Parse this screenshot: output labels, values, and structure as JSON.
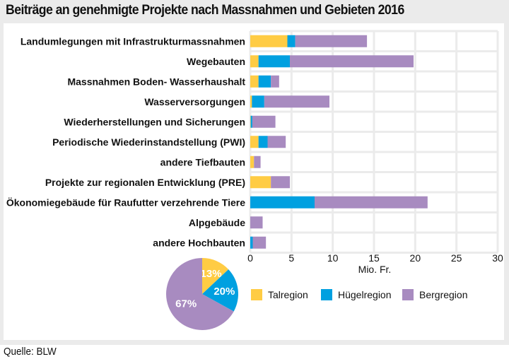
{
  "title": "Beiträge an genehmigte Projekte nach Massnahmen und Gebieten 2016",
  "source": "Quelle: BLW",
  "colors": {
    "Talregion": "#ffcc44",
    "Hügelregion": "#00a0e0",
    "Bergregion": "#a88bc0",
    "grid": "#ebebeb",
    "frame": "#ebebeb"
  },
  "chart_data": [
    {
      "type": "bar",
      "orientation": "horizontal",
      "stacked": true,
      "title": "Beiträge an genehmigte Projekte nach Massnahmen und Gebieten 2016",
      "xlabel": "Mio. Fr.",
      "ylabel": "",
      "xlim": [
        0,
        30
      ],
      "xticks": [
        "0",
        "5",
        "10",
        "15",
        "20",
        "25",
        "30"
      ],
      "grid": true,
      "legend_position": "bottom",
      "categories": [
        "Landumlegungen mit Infrastrukturmassnahmen",
        "Wegebauten",
        "Massnahmen Boden- Wasserhaushalt",
        "Wasserversorgungen",
        "Wiederherstellungen und Sicherungen",
        "Periodische Wiederinstandstellung (PWI)",
        "andere Tiefbauten",
        "Projekte zur regionalen Entwicklung (PRE)",
        "Ökonomiegebäude für Raufutter verzehrende Tiere",
        "Alpgebäude",
        "andere Hochbauten"
      ],
      "series": [
        {
          "name": "Talregion",
          "values": [
            4.5,
            1.0,
            1.0,
            0.2,
            0.05,
            1.0,
            0.45,
            2.5,
            0.0,
            0.0,
            0.0
          ]
        },
        {
          "name": "Hügelregion",
          "values": [
            0.95,
            3.8,
            1.5,
            1.5,
            0.2,
            1.1,
            0.0,
            0.0,
            7.8,
            0.0,
            0.3
          ]
        },
        {
          "name": "Bergregion",
          "values": [
            8.7,
            15.0,
            1.0,
            7.9,
            2.8,
            2.2,
            0.8,
            2.3,
            13.7,
            1.5,
            1.6
          ]
        }
      ]
    },
    {
      "type": "pie",
      "title": "",
      "labels": [
        "Talregion",
        "Hügelregion",
        "Bergregion"
      ],
      "values": [
        13,
        20,
        67
      ],
      "value_labels": [
        "13%",
        "20%",
        "67%"
      ]
    }
  ]
}
